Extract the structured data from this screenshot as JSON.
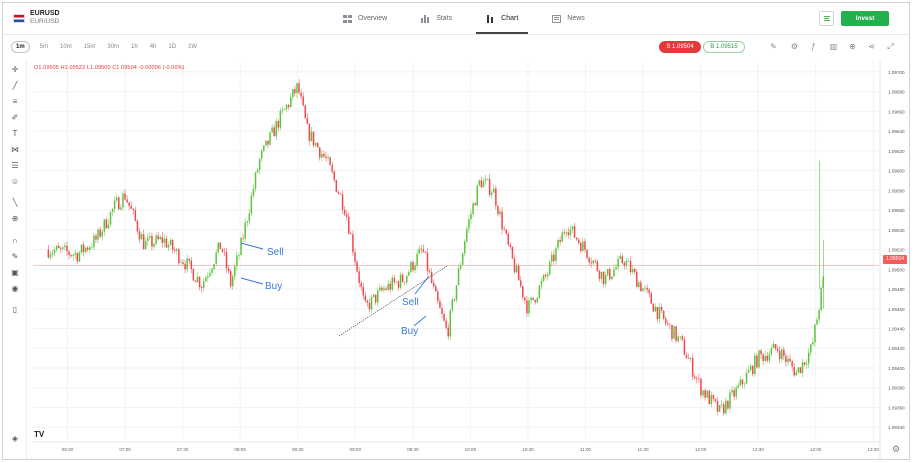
{
  "instrument": {
    "symbol": "EURUSD",
    "name": "EUR/USD"
  },
  "nav": {
    "tabs": [
      {
        "label": "Overview",
        "icon": "overview-grid-icon"
      },
      {
        "label": "Stats",
        "icon": "stats-bar-icon"
      },
      {
        "label": "Chart",
        "icon": "chart-candle-icon",
        "active": true
      },
      {
        "label": "News",
        "icon": "news-icon"
      }
    ]
  },
  "header": {
    "invest_label": "Invest",
    "accent": "#23b14d"
  },
  "toolbar": {
    "timeframes": [
      "1m",
      "5m",
      "10m",
      "15m",
      "30m",
      "1h",
      "4h",
      "1D",
      "1W"
    ],
    "active_timeframe": "1m",
    "sell_label": "S 1.09504",
    "buy_label": "B 1.09515",
    "sell_color": "#e5383b",
    "buy_color": "#23a047"
  },
  "ohlc": "O1.09505  H1.09522  L1.09500  C1.09504  -0.00006 (-0.00%)",
  "annotations": {
    "sell_1": "Sell",
    "buy_1": "Buy",
    "sell_2": "Sell",
    "buy_2": "Buy"
  },
  "chart_data": {
    "type": "candlestick",
    "x_ticks": [
      "06:30",
      "07:00",
      "07:30",
      "08:00",
      "08:30",
      "09:00",
      "09:30",
      "10:00",
      "10:30",
      "11:00",
      "11:30",
      "12:00",
      "12:30",
      "13:00",
      "13:30"
    ],
    "y_ticks": [
      1.097,
      1.0968,
      1.0966,
      1.0964,
      1.0962,
      1.096,
      1.0958,
      1.0956,
      1.0954,
      1.0952,
      1.095,
      1.0948,
      1.0946,
      1.0944,
      1.0942,
      1.094,
      1.0938,
      1.0936,
      1.0934
    ],
    "ylim": [
      1.09325,
      1.0971
    ],
    "current_price": 1.09504,
    "current_price_label": "1.09504",
    "up_color": "#5cc43c",
    "down_color": "#f0484b",
    "close_path": [
      [
        "06:20",
        1.0952
      ],
      [
        "06:35",
        1.09515
      ],
      [
        "06:45",
        1.0953
      ],
      [
        "06:55",
        1.09565
      ],
      [
        "07:00",
        1.09575
      ],
      [
        "07:10",
        1.09525
      ],
      [
        "07:20",
        1.0953
      ],
      [
        "07:30",
        1.0951
      ],
      [
        "07:40",
        1.09485
      ],
      [
        "07:50",
        1.09525
      ],
      [
        "07:55",
        1.09485
      ],
      [
        "08:00",
        1.0952
      ],
      [
        "08:10",
        1.0961
      ],
      [
        "08:20",
        1.0965
      ],
      [
        "08:30",
        1.09685
      ],
      [
        "08:35",
        1.0964
      ],
      [
        "08:45",
        1.0961
      ],
      [
        "08:55",
        1.0956
      ],
      [
        "09:05",
        1.0946
      ],
      [
        "09:15",
        1.0948
      ],
      [
        "09:25",
        1.0949
      ],
      [
        "09:35",
        1.0952
      ],
      [
        "09:42",
        1.0947
      ],
      [
        "09:48",
        1.09435
      ],
      [
        "09:58",
        1.0954
      ],
      [
        "10:05",
        1.0959
      ],
      [
        "10:12",
        1.0958
      ],
      [
        "10:20",
        1.0952
      ],
      [
        "10:30",
        1.0946
      ],
      [
        "10:40",
        1.09495
      ],
      [
        "10:50",
        1.09545
      ],
      [
        "11:00",
        1.0952
      ],
      [
        "11:10",
        1.0949
      ],
      [
        "11:20",
        1.0951
      ],
      [
        "11:30",
        1.0948
      ],
      [
        "11:40",
        1.0945
      ],
      [
        "11:50",
        1.09425
      ],
      [
        "12:00",
        1.0938
      ],
      [
        "12:10",
        1.09355
      ],
      [
        "12:20",
        1.0938
      ],
      [
        "12:30",
        1.0941
      ],
      [
        "12:40",
        1.0942
      ],
      [
        "12:50",
        1.09395
      ],
      [
        "12:58",
        1.0942
      ],
      [
        "13:05",
        1.095
      ]
    ]
  }
}
